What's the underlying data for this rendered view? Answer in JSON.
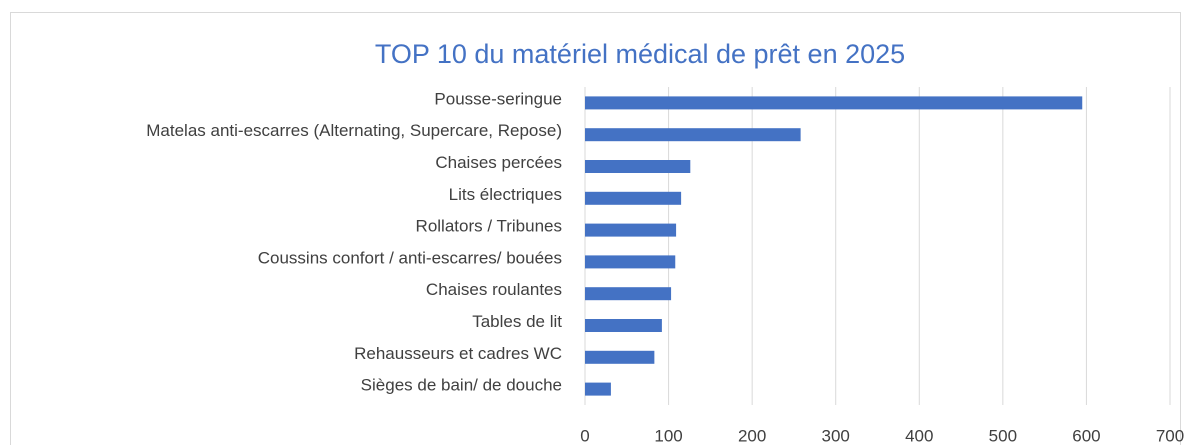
{
  "chart_data": {
    "type": "bar",
    "orientation": "horizontal",
    "title": "TOP 10 du matériel médical de prêt en 2025",
    "categories": [
      "Pousse-seringue",
      "Matelas anti-escarres (Alternating, Supercare, Repose)",
      "Chaises percées",
      "Lits électriques",
      "Rollators / Tribunes",
      "Coussins confort / anti-escarres/ bouées",
      "Chaises roulantes",
      "Tables de lit",
      "Rehausseurs et cadres WC",
      "Sièges de bain/ de douche"
    ],
    "values": [
      595,
      258,
      126,
      115,
      109,
      108,
      103,
      92,
      83,
      31
    ],
    "color": "#4472c4",
    "xlim": [
      0,
      700
    ],
    "xticks": [
      0,
      100,
      200,
      300,
      400,
      500,
      600,
      700
    ],
    "grid": true
  }
}
